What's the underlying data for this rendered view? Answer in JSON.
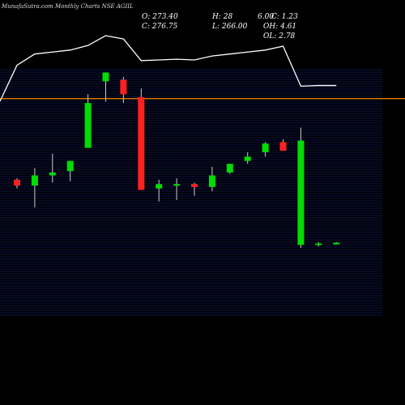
{
  "header": {
    "title": "MunafaSutra.com Monthly Charts NSE AGIIL",
    "open_label": "O: 273.40",
    "high_label": "H: 28",
    "change_label": "6.00",
    "c_label": "C: 1.23",
    "close_label": "C: 276.75",
    "low_label": "L: 266.00",
    "oh_label": "OH: 4.61",
    "ol_label": "OL: 2.78"
  },
  "chart_data": {
    "type": "candlestick",
    "price_range": [
      150,
      320
    ],
    "reference_line": {
      "value": 300,
      "color": "#ff8c00"
    },
    "colors": {
      "up": "#00dd00",
      "down": "#ff2020",
      "grid": "#1a2a90",
      "volume_line": "#ffffff",
      "wick": "#cccccc"
    },
    "candles": [
      {
        "open": 244,
        "high": 245,
        "low": 238,
        "close": 240
      },
      {
        "open": 240,
        "high": 252,
        "low": 225,
        "close": 247
      },
      {
        "open": 247,
        "high": 262,
        "low": 242,
        "close": 249
      },
      {
        "open": 250,
        "high": 257,
        "low": 243,
        "close": 257
      },
      {
        "open": 266,
        "high": 303,
        "low": 266,
        "close": 297
      },
      {
        "open": 312,
        "high": 318,
        "low": 298,
        "close": 318
      },
      {
        "open": 313,
        "high": 315,
        "low": 297,
        "close": 303
      },
      {
        "open": 301,
        "high": 307,
        "low": 237,
        "close": 237
      },
      {
        "open": 238,
        "high": 244,
        "low": 229,
        "close": 241
      },
      {
        "open": 240,
        "high": 245,
        "low": 230,
        "close": 241
      },
      {
        "open": 241,
        "high": 242,
        "low": 233,
        "close": 239
      },
      {
        "open": 239,
        "high": 253,
        "low": 236,
        "close": 247
      },
      {
        "open": 249,
        "high": 255,
        "low": 248,
        "close": 255
      },
      {
        "open": 257,
        "high": 263,
        "low": 255,
        "close": 260
      },
      {
        "open": 263,
        "high": 270,
        "low": 260,
        "close": 269
      },
      {
        "open": 270,
        "high": 272,
        "low": 264,
        "close": 264
      },
      {
        "open": 199,
        "high": 280,
        "low": 197,
        "close": 271
      },
      {
        "open": 199,
        "high": 201,
        "low": 198,
        "close": 200
      },
      {
        "open": 200,
        "high": 201,
        "low": 199.5,
        "close": 200.5
      }
    ],
    "volume_line": [
      0.55,
      0.72,
      0.75,
      0.78,
      0.85,
      1.0,
      0.95,
      0.62,
      0.63,
      0.64,
      0.63,
      0.69,
      0.72,
      0.75,
      0.78,
      0.84,
      0.23,
      0.24,
      0.24
    ]
  }
}
